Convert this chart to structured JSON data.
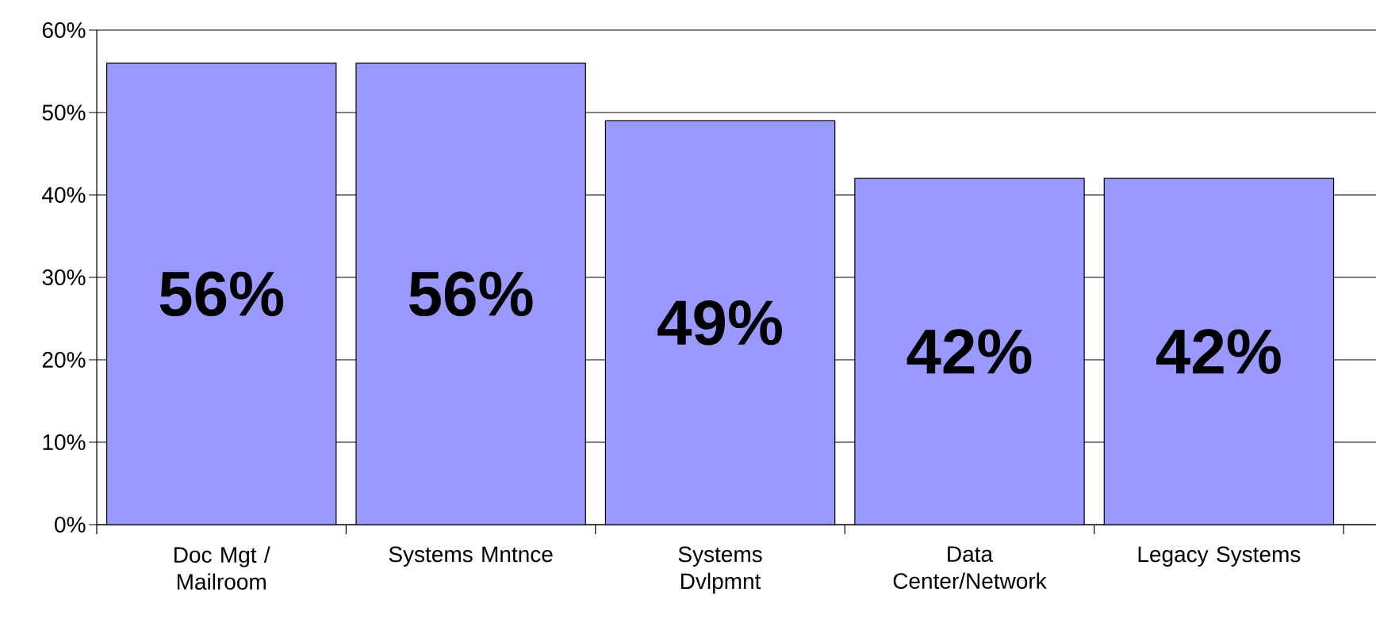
{
  "chart_data": {
    "type": "bar",
    "categories": [
      "Doc Mgt / Mailroom",
      "Systems Mntnce",
      "Systems Dvlpmnt",
      "Data Center/Network",
      "Legacy Systems"
    ],
    "values": [
      56,
      56,
      49,
      42,
      42
    ],
    "value_labels": [
      "56%",
      "56%",
      "49%",
      "42%",
      "42%"
    ],
    "color": "#9999ff",
    "ylim": [
      0,
      60
    ],
    "yticks": [
      {
        "value": 0,
        "label": "0%"
      },
      {
        "value": 10,
        "label": "10%"
      },
      {
        "value": 20,
        "label": "20%"
      },
      {
        "value": 30,
        "label": "30%"
      },
      {
        "value": 40,
        "label": "40%"
      },
      {
        "value": 50,
        "label": "50%"
      },
      {
        "value": 60,
        "label": "60%"
      }
    ],
    "grid": "y"
  }
}
